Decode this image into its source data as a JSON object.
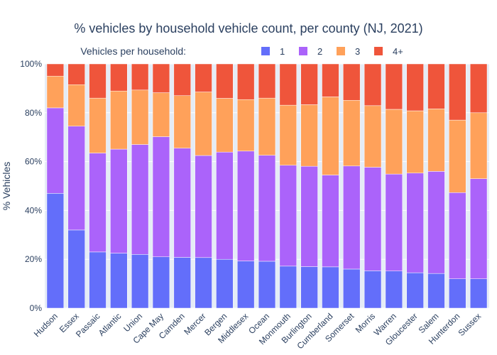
{
  "chart_data": {
    "type": "bar",
    "stacked": true,
    "normalized_percent": true,
    "title": "% vehicles by household vehicle count, per county (NJ, 2021)",
    "xlabel": "",
    "ylabel": "% Vehicles",
    "ylim": [
      0,
      100
    ],
    "y_tick_labels": [
      "0%",
      "20%",
      "40%",
      "60%",
      "80%",
      "100%"
    ],
    "grid": true,
    "legend": {
      "title": "Vehicles per household:",
      "position": "top-center"
    },
    "categories": [
      "Hudson",
      "Essex",
      "Passaic",
      "Atlantic",
      "Union",
      "Cape May",
      "Camden",
      "Mercer",
      "Bergen",
      "Middlesex",
      "Ocean",
      "Monmouth",
      "Burlington",
      "Cumberland",
      "Somerset",
      "Morris",
      "Warren",
      "Gloucester",
      "Salem",
      "Hunterdon",
      "Sussex"
    ],
    "series": [
      {
        "name": "1",
        "color": "#636efa",
        "values": [
          47,
          32,
          23,
          22.5,
          22,
          21,
          20.8,
          20.7,
          20,
          19.3,
          19.2,
          17.2,
          17,
          16.9,
          16,
          15.3,
          15.2,
          14.5,
          14.2,
          12,
          12
        ]
      },
      {
        "name": "2",
        "color": "#ab63fa",
        "values": [
          35,
          42.5,
          40.5,
          42.6,
          45,
          49.2,
          44.7,
          41.8,
          43.9,
          45,
          43.4,
          41.3,
          41.1,
          37.6,
          42.2,
          42.4,
          39.7,
          40.8,
          41.8,
          35.3,
          41
        ]
      },
      {
        "name": "3",
        "color": "#ffa15a",
        "values": [
          13,
          17,
          22.5,
          23.8,
          22.3,
          18,
          21.5,
          26,
          22,
          21.1,
          23.4,
          24.6,
          25.2,
          32,
          26.9,
          25.2,
          26.5,
          25.5,
          25.6,
          29.7,
          27
        ]
      },
      {
        "name": "4+",
        "color": "#ef553b",
        "values": [
          5,
          8.5,
          14,
          11.1,
          10.7,
          11.8,
          13,
          11.5,
          14.1,
          14.6,
          14,
          16.9,
          16.7,
          13.5,
          14.9,
          17.1,
          18.6,
          19.2,
          18.4,
          23,
          20
        ]
      }
    ]
  }
}
